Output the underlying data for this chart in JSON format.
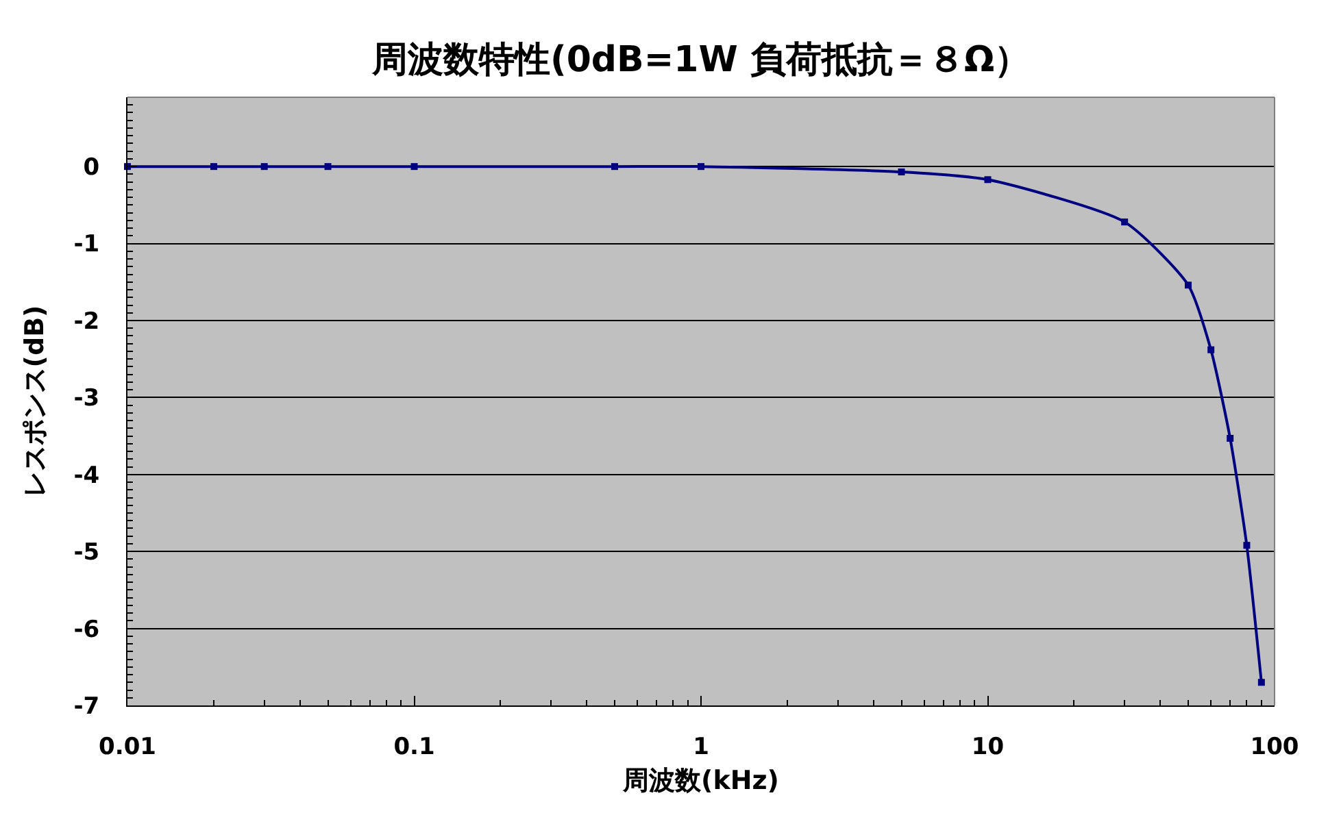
{
  "chart_data": {
    "type": "line",
    "title": "周波数特性(0dB=1W 負荷抵抗＝８Ω）",
    "xlabel": "周波数(kHz)",
    "ylabel": "レスポンス(dB)",
    "x": [
      0.01,
      0.02,
      0.03,
      0.05,
      0.1,
      0.5,
      1,
      5,
      10,
      30,
      50,
      60,
      70,
      80,
      90
    ],
    "series": [
      {
        "color": "#000080",
        "values": [
          0,
          0,
          0,
          0,
          0,
          0,
          0,
          -0.07,
          -0.17,
          -0.72,
          -1.54,
          -2.38,
          -3.53,
          -4.92,
          -6.7
        ]
      }
    ],
    "log": "x",
    "xlim": [
      0.01,
      100
    ],
    "xticks": [
      0.01,
      0.1,
      1,
      10,
      100
    ],
    "ylim": [
      -7,
      0.9
    ],
    "yticks": [
      -7,
      -6,
      -5,
      -4,
      -3,
      -2,
      -1,
      0
    ],
    "grid": "y",
    "marker": "square",
    "line_style": "solid"
  }
}
